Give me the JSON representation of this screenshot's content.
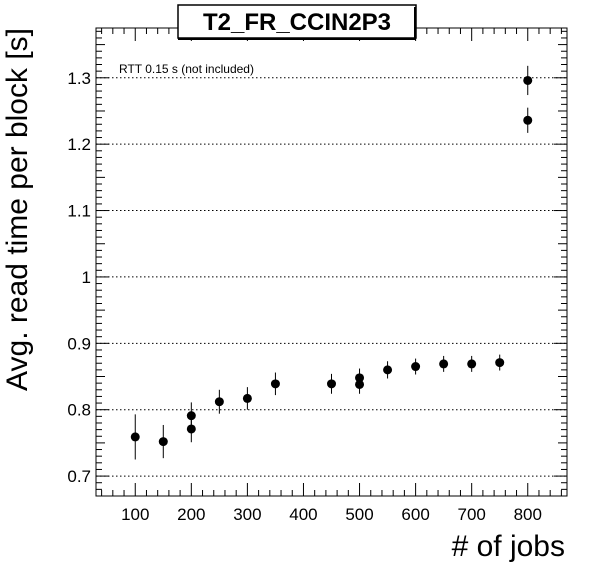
{
  "chart_data": {
    "type": "scatter",
    "title": "T2_FR_CCIN2P3",
    "xlabel": "# of jobs",
    "ylabel": "Avg. read time per block [s]",
    "annotation": "RTT 0.15 s (not included)",
    "xlim": [
      30,
      870
    ],
    "ylim": [
      0.67,
      1.375
    ],
    "x_ticks": [
      100,
      200,
      300,
      400,
      500,
      600,
      700,
      800
    ],
    "x_tick_labels": [
      "100",
      "200",
      "300",
      "400",
      "500",
      "600",
      "700",
      "800"
    ],
    "y_ticks": [
      0.7,
      0.8,
      0.9,
      1.0,
      1.1,
      1.2,
      1.3
    ],
    "y_tick_labels": [
      "0.7",
      "0.8",
      "0.9",
      "1",
      "1.1",
      "1.2",
      "1.3"
    ],
    "grid": "horizontal-dotted",
    "series": [
      {
        "points": [
          {
            "x": 100,
            "y": 0.759,
            "err": 0.034
          },
          {
            "x": 150,
            "y": 0.752,
            "err": 0.025
          },
          {
            "x": 200,
            "y": 0.771,
            "err": 0.02
          },
          {
            "x": 200,
            "y": 0.791,
            "err": 0.02
          },
          {
            "x": 250,
            "y": 0.812,
            "err": 0.018
          },
          {
            "x": 300,
            "y": 0.817,
            "err": 0.017
          },
          {
            "x": 350,
            "y": 0.839,
            "err": 0.017
          },
          {
            "x": 450,
            "y": 0.839,
            "err": 0.015
          },
          {
            "x": 500,
            "y": 0.838,
            "err": 0.014
          },
          {
            "x": 500,
            "y": 0.848,
            "err": 0.014
          },
          {
            "x": 550,
            "y": 0.86,
            "err": 0.013
          },
          {
            "x": 600,
            "y": 0.865,
            "err": 0.012
          },
          {
            "x": 650,
            "y": 0.869,
            "err": 0.012
          },
          {
            "x": 700,
            "y": 0.869,
            "err": 0.012
          },
          {
            "x": 750,
            "y": 0.871,
            "err": 0.012
          },
          {
            "x": 800,
            "y": 1.236,
            "err": 0.019
          },
          {
            "x": 800,
            "y": 1.296,
            "err": 0.022
          }
        ]
      }
    ]
  }
}
